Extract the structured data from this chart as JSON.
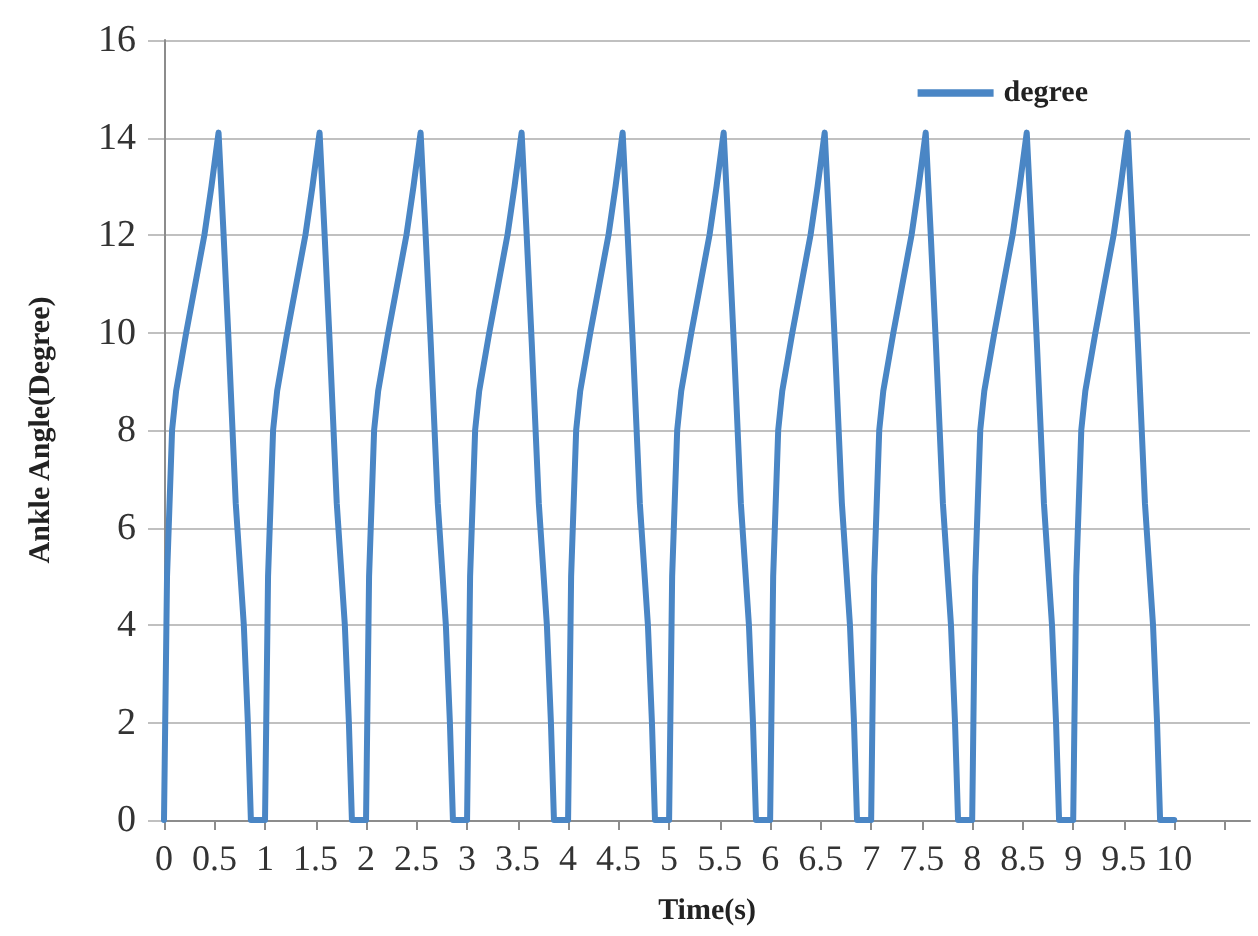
{
  "chart_data": {
    "type": "line",
    "xlabel": "Time(s)",
    "ylabel": "Ankle Angle(Degree)",
    "x": [
      0,
      0.03,
      0.08,
      0.12,
      0.22,
      0.4,
      0.47,
      0.54,
      0.59,
      0.64,
      0.71,
      0.79,
      0.83,
      0.86,
      1,
      1.03,
      1.08,
      1.12,
      1.22,
      1.4,
      1.47,
      1.54,
      1.59,
      1.64,
      1.71,
      1.79,
      1.83,
      1.86,
      2,
      2.03,
      2.08,
      2.12,
      2.22,
      2.4,
      2.47,
      2.54,
      2.59,
      2.64,
      2.71,
      2.79,
      2.83,
      2.86,
      3,
      3.03,
      3.08,
      3.12,
      3.22,
      3.4,
      3.47,
      3.54,
      3.59,
      3.64,
      3.71,
      3.79,
      3.83,
      3.86,
      4,
      4.03,
      4.08,
      4.12,
      4.22,
      4.4,
      4.47,
      4.54,
      4.59,
      4.64,
      4.71,
      4.79,
      4.83,
      4.86,
      5,
      5.03,
      5.08,
      5.12,
      5.22,
      5.4,
      5.47,
      5.54,
      5.59,
      5.64,
      5.71,
      5.79,
      5.83,
      5.86,
      6,
      6.03,
      6.08,
      6.12,
      6.22,
      6.4,
      6.47,
      6.54,
      6.59,
      6.64,
      6.71,
      6.79,
      6.83,
      6.86,
      7,
      7.03,
      7.08,
      7.12,
      7.22,
      7.4,
      7.47,
      7.54,
      7.59,
      7.64,
      7.71,
      7.79,
      7.83,
      7.86,
      8,
      8.03,
      8.08,
      8.12,
      8.22,
      8.4,
      8.47,
      8.54,
      8.59,
      8.64,
      8.71,
      8.79,
      8.83,
      8.86,
      9,
      9.03,
      9.08,
      9.12,
      9.22,
      9.4,
      9.47,
      9.54,
      9.59,
      9.64,
      9.71,
      9.79,
      9.83,
      9.86,
      10
    ],
    "series": [
      {
        "name": "degree",
        "color": "#4a86c5",
        "values": [
          0,
          5,
          8,
          8.8,
          10,
          12,
          13,
          14.1,
          12,
          9.8,
          6.5,
          4,
          2,
          0,
          0,
          5,
          8,
          8.8,
          10,
          12,
          13,
          14.1,
          12,
          9.8,
          6.5,
          4,
          2,
          0,
          0,
          5,
          8,
          8.8,
          10,
          12,
          13,
          14.1,
          12,
          9.8,
          6.5,
          4,
          2,
          0,
          0,
          5,
          8,
          8.8,
          10,
          12,
          13,
          14.1,
          12,
          9.8,
          6.5,
          4,
          2,
          0,
          0,
          5,
          8,
          8.8,
          10,
          12,
          13,
          14.1,
          12,
          9.8,
          6.5,
          4,
          2,
          0,
          0,
          5,
          8,
          8.8,
          10,
          12,
          13,
          14.1,
          12,
          9.8,
          6.5,
          4,
          2,
          0,
          0,
          5,
          8,
          8.8,
          10,
          12,
          13,
          14.1,
          12,
          9.8,
          6.5,
          4,
          2,
          0,
          0,
          5,
          8,
          8.8,
          10,
          12,
          13,
          14.1,
          12,
          9.8,
          6.5,
          4,
          2,
          0,
          0,
          5,
          8,
          8.8,
          10,
          12,
          13,
          14.1,
          12,
          9.8,
          6.5,
          4,
          2,
          0,
          0,
          5,
          8,
          8.8,
          10,
          12,
          13,
          14.1,
          12,
          9.8,
          6.5,
          4,
          2,
          0,
          0
        ]
      }
    ],
    "xlim": [
      0,
      10.75
    ],
    "xticks": [
      0,
      0.5,
      1,
      1.5,
      2,
      2.5,
      3,
      3.5,
      4,
      4.5,
      5,
      5.5,
      6,
      6.5,
      7,
      7.5,
      8,
      8.5,
      9,
      9.5,
      10,
      {
        "value": 10.5,
        "label": null
      }
    ],
    "ylim": [
      0,
      16
    ],
    "yticks": [
      0,
      2,
      4,
      6,
      8,
      10,
      12,
      14,
      16
    ],
    "grid": "y",
    "legend": "top right",
    "marker": "none",
    "line_style": "solid"
  }
}
